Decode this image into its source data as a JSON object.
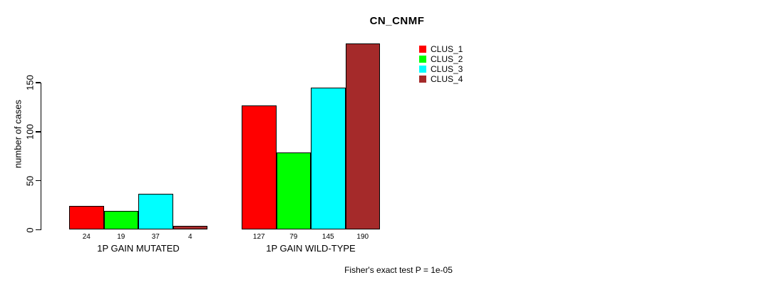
{
  "chart_data": {
    "type": "bar",
    "title": "CN_CNMF",
    "ylabel": "number of cases",
    "xlabel": "",
    "categories": [
      "1P GAIN MUTATED",
      "1P GAIN WILD-TYPE"
    ],
    "series": [
      {
        "name": "CLUS_1",
        "color": "#ff0000",
        "values": [
          24,
          127
        ]
      },
      {
        "name": "CLUS_2",
        "color": "#00ff00",
        "values": [
          19,
          79
        ]
      },
      {
        "name": "CLUS_3",
        "color": "#00ffff",
        "values": [
          37,
          145
        ]
      },
      {
        "name": "CLUS_4",
        "color": "#a52a2a",
        "values": [
          4,
          190
        ]
      }
    ],
    "yticks": [
      0,
      50,
      100,
      150
    ],
    "ylim": [
      0,
      150
    ],
    "grid": false,
    "legend_position": "top-right",
    "bar_value_labels": true,
    "annotation": "Fisher's exact test P = 1e-05"
  },
  "colors": {
    "background": "#ffffff",
    "axis": "#000000",
    "bar_border": "#000000",
    "text": "#000000"
  }
}
